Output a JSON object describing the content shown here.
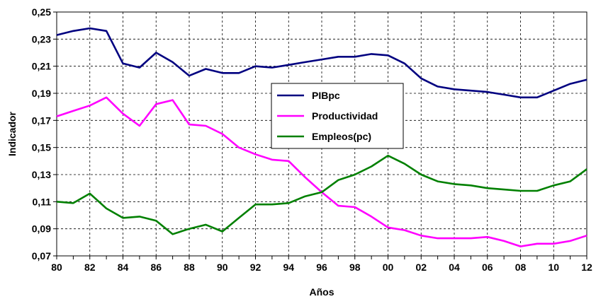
{
  "chart_data": {
    "type": "line",
    "xlabel": "Años",
    "ylabel": "Indicador",
    "ylim": [
      0.07,
      0.25
    ],
    "y_ticks": [
      "0,07",
      "0,09",
      "0,11",
      "0,13",
      "0,15",
      "0,17",
      "0,19",
      "0,21",
      "0,23",
      "0,25"
    ],
    "x_ticks": [
      "80",
      "82",
      "84",
      "86",
      "88",
      "90",
      "92",
      "94",
      "96",
      "98",
      "00",
      "02",
      "04",
      "06",
      "08",
      "10",
      "12"
    ],
    "grid": true,
    "legend_position": "center",
    "x": [
      1980,
      1981,
      1982,
      1983,
      1984,
      1985,
      1986,
      1987,
      1988,
      1989,
      1990,
      1991,
      1992,
      1993,
      1994,
      1995,
      1996,
      1997,
      1998,
      1999,
      2000,
      2001,
      2002,
      2003,
      2004,
      2005,
      2006,
      2007,
      2008,
      2009,
      2010,
      2011,
      2012
    ],
    "series": [
      {
        "name": "PIBpc",
        "color": "#000080",
        "values": [
          0.233,
          0.236,
          0.238,
          0.236,
          0.212,
          0.209,
          0.22,
          0.213,
          0.203,
          0.208,
          0.205,
          0.205,
          0.21,
          0.209,
          0.211,
          0.213,
          0.215,
          0.217,
          0.217,
          0.219,
          0.218,
          0.212,
          0.201,
          0.195,
          0.193,
          0.192,
          0.191,
          0.189,
          0.187,
          0.187,
          0.192,
          0.197,
          0.2
        ]
      },
      {
        "name": "Productividad",
        "color": "#ff00ff",
        "values": [
          0.173,
          0.177,
          0.181,
          0.187,
          0.175,
          0.166,
          0.182,
          0.185,
          0.167,
          0.166,
          0.16,
          0.15,
          0.145,
          0.141,
          0.14,
          0.128,
          0.117,
          0.107,
          0.106,
          0.099,
          0.091,
          0.089,
          0.085,
          0.083,
          0.083,
          0.083,
          0.084,
          0.081,
          0.077,
          0.079,
          0.079,
          0.081,
          0.085
        ]
      },
      {
        "name": "Empleos(pc)",
        "color": "#008000",
        "values": [
          0.11,
          0.109,
          0.116,
          0.105,
          0.098,
          0.099,
          0.096,
          0.086,
          0.09,
          0.093,
          0.088,
          0.098,
          0.108,
          0.108,
          0.109,
          0.114,
          0.117,
          0.126,
          0.13,
          0.136,
          0.144,
          0.138,
          0.13,
          0.125,
          0.123,
          0.122,
          0.12,
          0.119,
          0.118,
          0.118,
          0.122,
          0.125,
          0.134
        ]
      }
    ]
  }
}
